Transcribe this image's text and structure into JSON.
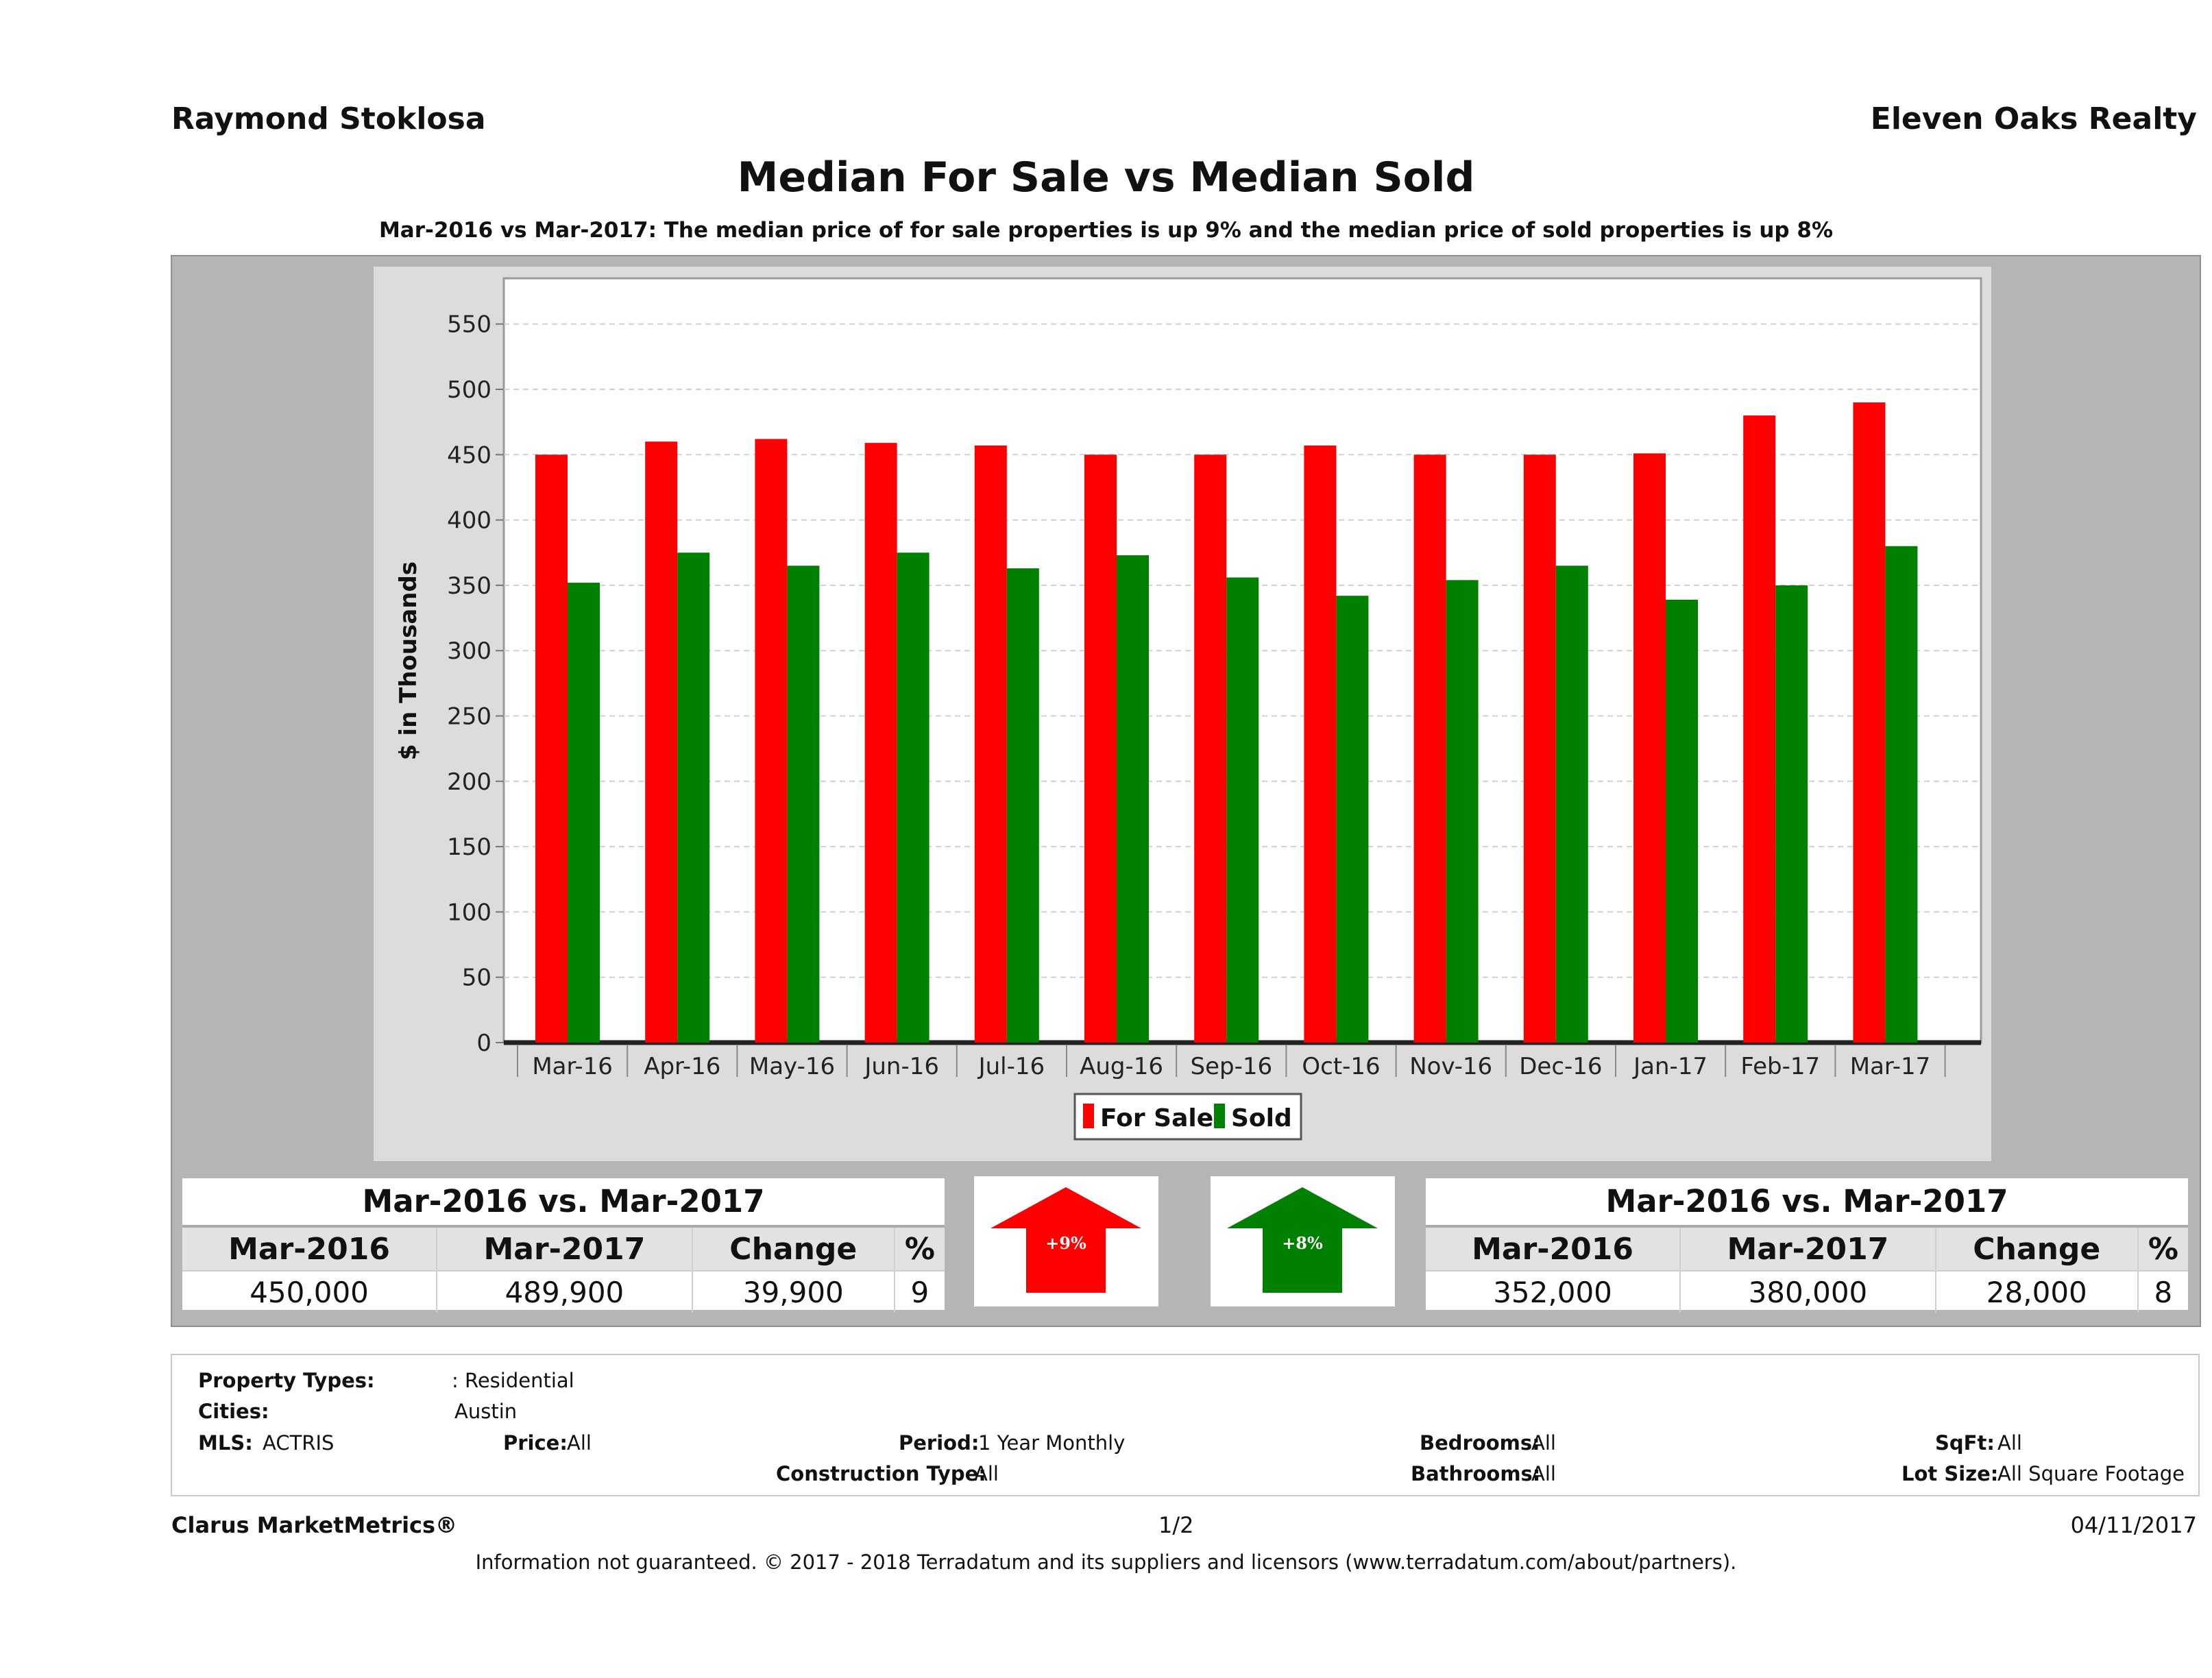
{
  "header": {
    "agent": "Raymond Stoklosa",
    "brokerage": "Eleven Oaks Realty"
  },
  "chart_data": {
    "type": "bar",
    "title": "Median For Sale vs Median Sold",
    "subtitle": "Mar-2016 vs Mar-2017: The median price of for sale properties is up 9% and the median price of sold properties is up 8%",
    "xlabel": "",
    "ylabel": "$ in Thousands",
    "ylim": [
      0,
      585
    ],
    "yticks": [
      0,
      50,
      100,
      150,
      200,
      250,
      300,
      350,
      400,
      450,
      500,
      550
    ],
    "grid": true,
    "legend_position": "bottom-center",
    "categories": [
      "Mar-16",
      "Apr-16",
      "May-16",
      "Jun-16",
      "Jul-16",
      "Aug-16",
      "Sep-16",
      "Oct-16",
      "Nov-16",
      "Dec-16",
      "Jan-17",
      "Feb-17",
      "Mar-17"
    ],
    "series": [
      {
        "name": "For Sale",
        "color": "#ff0000",
        "values": [
          450,
          460,
          462,
          459,
          457,
          450,
          450,
          457,
          450,
          450,
          451,
          480,
          490
        ]
      },
      {
        "name": "Sold",
        "color": "#008000",
        "values": [
          352,
          375,
          365,
          375,
          363,
          373,
          356,
          342,
          354,
          365,
          339,
          350,
          380
        ]
      }
    ]
  },
  "stats": {
    "for_sale": {
      "caption": "Mar-2016 vs. Mar-2017",
      "headers": [
        "Mar-2016",
        "Mar-2017",
        "Change",
        "%"
      ],
      "values": [
        "450,000",
        "489,900",
        "39,900",
        "9"
      ],
      "arrow_label": "+9%",
      "arrow_color": "#ff0000"
    },
    "sold": {
      "caption": "Mar-2016 vs. Mar-2017",
      "headers": [
        "Mar-2016",
        "Mar-2017",
        "Change",
        "%"
      ],
      "values": [
        "352,000",
        "380,000",
        "28,000",
        "8"
      ],
      "arrow_label": "+8%",
      "arrow_color": "#008000"
    }
  },
  "filters": {
    "property_types_label": "Property Types:",
    "property_types_value": ": Residential",
    "cities_label": "Cities:",
    "cities_value": "Austin",
    "mls_label": "MLS:",
    "mls_value": "ACTRIS",
    "price_label": "Price:",
    "price_value": "All",
    "period_label": "Period:",
    "period_value": "1 Year Monthly",
    "construction_label": "Construction Type:",
    "construction_value": "All",
    "bedrooms_label": "Bedrooms:",
    "bedrooms_value": "All",
    "bathrooms_label": "Bathrooms:",
    "bathrooms_value": "All",
    "sqft_label": "SqFt:",
    "sqft_value": "All",
    "lot_label": "Lot Size:",
    "lot_value": "All Square Footage"
  },
  "footer": {
    "brand": "Clarus MarketMetrics®",
    "page": "1/2",
    "date": "04/11/2017",
    "disclaimer": "Information not guaranteed. © 2017 - 2018 Terradatum and its suppliers and licensors (www.terradatum.com/about/partners)."
  }
}
